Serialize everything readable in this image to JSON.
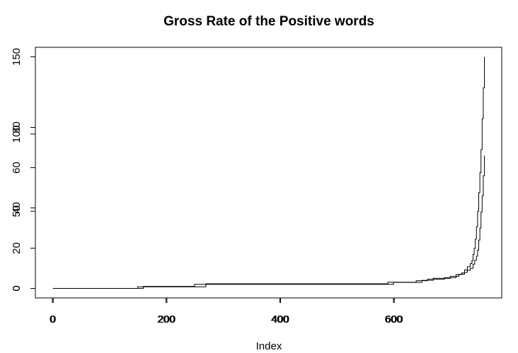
{
  "chart_data": {
    "type": "line",
    "title": "Gross Rate of the Positive words",
    "xlabel": "Index",
    "ylabel": "",
    "grid": false,
    "legend": "none",
    "x_axes": [
      {
        "name": "x-axis-1",
        "range": [
          0,
          760
        ],
        "ticks": [
          0,
          200,
          400,
          600
        ]
      },
      {
        "name": "x-axis-2",
        "range": [
          0,
          760
        ],
        "ticks": [
          0,
          200,
          400,
          600
        ]
      }
    ],
    "y_axes": [
      {
        "name": "y-axis-150",
        "range": [
          0,
          150
        ],
        "ticks": [
          0,
          50,
          100,
          150
        ]
      },
      {
        "name": "y-axis-80",
        "range": [
          0,
          80
        ],
        "ticks": [
          0,
          20,
          40,
          60,
          80
        ]
      }
    ],
    "series": [
      {
        "axis": 0,
        "x": [
          1,
          150,
          170,
          260,
          270,
          560,
          590,
          640,
          660,
          690,
          710,
          720,
          725,
          730,
          735,
          738,
          740,
          742,
          744,
          746,
          748,
          750,
          752,
          754,
          756,
          758,
          760
        ],
        "y": [
          0,
          1,
          1,
          1,
          3,
          3,
          4,
          5,
          6,
          7,
          9,
          10,
          12,
          14,
          16,
          18,
          22,
          26,
          32,
          40,
          50,
          62,
          75,
          90,
          110,
          130,
          150
        ]
      },
      {
        "axis": 1,
        "x": [
          1,
          160,
          250,
          560,
          600,
          650,
          670,
          700,
          715,
          725,
          730,
          735,
          740,
          743,
          746,
          748,
          750,
          752,
          754,
          756,
          758,
          760
        ],
        "y": [
          0,
          1,
          2,
          2,
          3,
          4,
          5,
          6,
          7,
          8,
          9,
          10,
          12,
          14,
          16,
          19,
          24,
          30,
          38,
          46,
          56,
          66
        ]
      }
    ]
  }
}
